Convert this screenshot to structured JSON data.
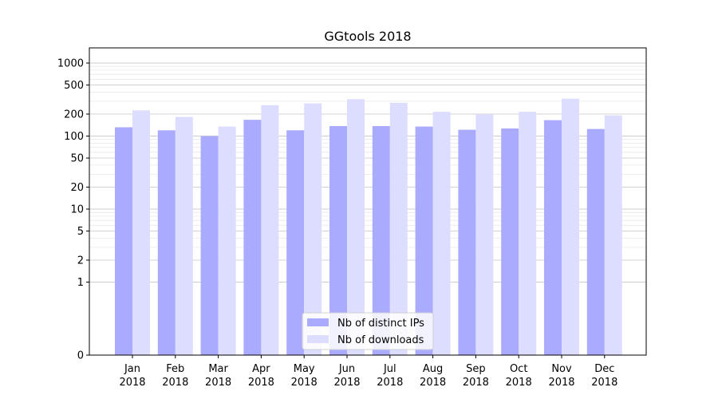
{
  "chart_data": {
    "type": "bar",
    "title": "GGtools 2018",
    "xlabel": "",
    "ylabel": "",
    "y_scale": "symlog",
    "ylim": [
      0,
      1300
    ],
    "y_ticks": [
      0,
      1,
      2,
      5,
      10,
      20,
      50,
      100,
      200,
      500,
      1000
    ],
    "y_tick_labels": [
      "0",
      "1",
      "2",
      "5",
      "10",
      "20",
      "50",
      "100",
      "200",
      "500",
      "1000"
    ],
    "grid": "horizontal",
    "legend_position": "bottom-center",
    "categories": [
      [
        "Jan",
        "2018"
      ],
      [
        "Feb",
        "2018"
      ],
      [
        "Mar",
        "2018"
      ],
      [
        "Apr",
        "2018"
      ],
      [
        "May",
        "2018"
      ],
      [
        "Jun",
        "2018"
      ],
      [
        "Jul",
        "2018"
      ],
      [
        "Aug",
        "2018"
      ],
      [
        "Sep",
        "2018"
      ],
      [
        "Oct",
        "2018"
      ],
      [
        "Nov",
        "2018"
      ],
      [
        "Dec",
        "2018"
      ]
    ],
    "series": [
      {
        "name": "Nb of distinct IPs",
        "color": "#aaaaff",
        "values": [
          132,
          120,
          100,
          167,
          120,
          137,
          137,
          135,
          122,
          127,
          165,
          125
        ]
      },
      {
        "name": "Nb of downloads",
        "color": "#ddddff",
        "values": [
          225,
          183,
          135,
          265,
          280,
          320,
          285,
          215,
          198,
          215,
          325,
          192
        ]
      }
    ]
  }
}
